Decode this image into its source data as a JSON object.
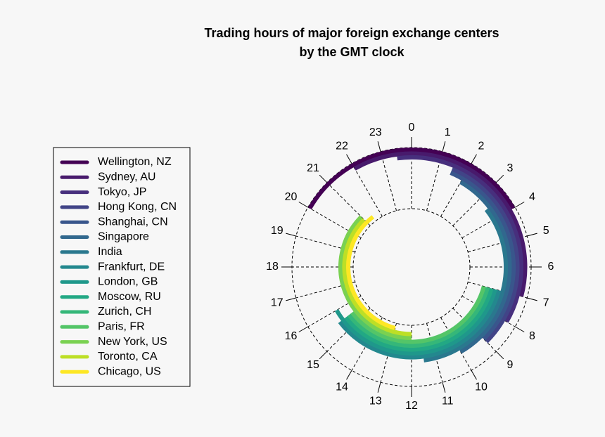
{
  "chart_data": {
    "type": "clock-arcs",
    "title": [
      "Trading hours of major foreign exchange centers",
      "by the GMT clock"
    ],
    "xlim": [
      0,
      24
    ],
    "xticks": [
      0,
      1,
      2,
      3,
      4,
      5,
      6,
      7,
      8,
      9,
      10,
      11,
      12,
      13,
      14,
      15,
      16,
      17,
      18,
      19,
      20,
      21,
      22,
      23
    ],
    "series": [
      {
        "name": "Wellington, NZ",
        "color": "#440154",
        "start": 20,
        "end": 4
      },
      {
        "name": "Sydney, AU",
        "color": "#481a6c",
        "start": 22,
        "end": 7
      },
      {
        "name": "Tokyo, JP",
        "color": "#472f7d",
        "start": 23.5,
        "end": 8
      },
      {
        "name": "Hong Kong, CN",
        "color": "#414487",
        "start": 1.5,
        "end": 9
      },
      {
        "name": "Shanghai, CN",
        "color": "#39568c",
        "start": 1.5,
        "end": 9
      },
      {
        "name": "Singapore",
        "color": "#31688e",
        "start": 2,
        "end": 10
      },
      {
        "name": "India",
        "color": "#2a788e",
        "start": 3.5,
        "end": 11.5
      },
      {
        "name": "Frankfurt, DE",
        "color": "#23888e",
        "start": 7,
        "end": 15.5
      },
      {
        "name": "London, GB",
        "color": "#1f988b",
        "start": 7,
        "end": 16
      },
      {
        "name": "Moscow, RU",
        "color": "#22a884",
        "start": 7,
        "end": 15.5
      },
      {
        "name": "Zurich, CH",
        "color": "#35b779",
        "start": 7,
        "end": 15.5
      },
      {
        "name": "Paris, FR",
        "color": "#54c568",
        "start": 7,
        "end": 15.5
      },
      {
        "name": "New York, US",
        "color": "#7ad151",
        "start": 12,
        "end": 21
      },
      {
        "name": "Toronto, CA",
        "color": "#bddf26",
        "start": 12,
        "end": 21
      },
      {
        "name": "Chicago, US",
        "color": "#fde725",
        "start": 13,
        "end": 21.5
      }
    ]
  }
}
